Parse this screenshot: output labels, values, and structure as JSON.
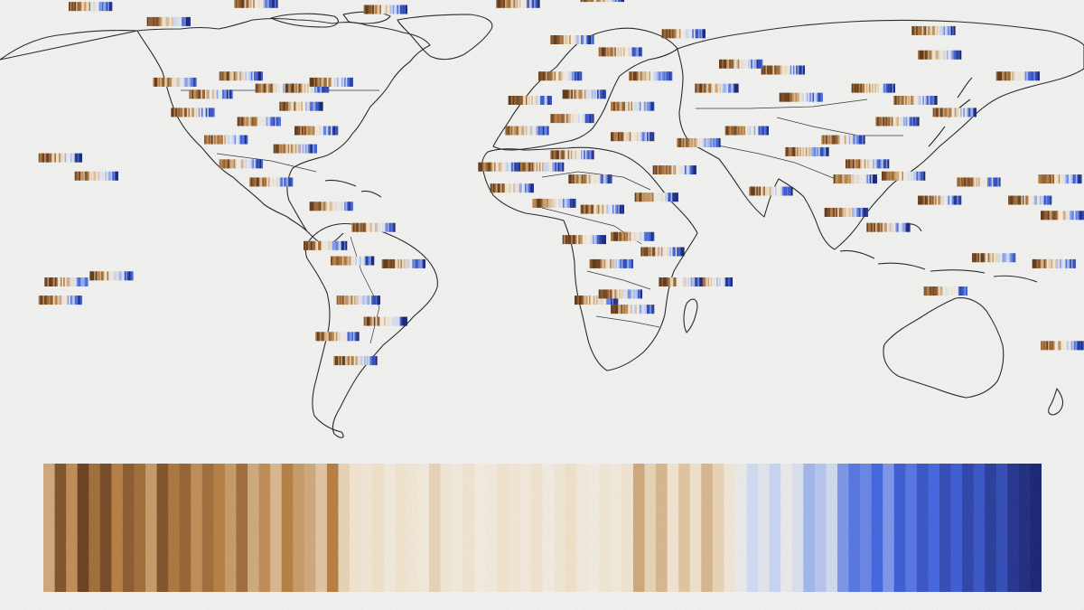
{
  "palette": {
    "warm_dark": "#5a2f10",
    "warm_mid": "#b5793a",
    "warm_light": "#f2e2c8",
    "neutral": "#f5f1ea",
    "cool_light": "#c8d6f4",
    "cool_mid": "#3a5fe0",
    "cool_dark": "#0e1a6e",
    "background": "#f4f4f2",
    "coastline": "#1c1c1c"
  },
  "big_stripe_series": [
    -0.45,
    -0.85,
    -0.55,
    -0.95,
    -0.7,
    -0.9,
    -0.6,
    -0.8,
    -0.7,
    -0.5,
    -0.85,
    -0.65,
    -0.75,
    -0.55,
    -0.7,
    -0.6,
    -0.5,
    -0.7,
    -0.45,
    -0.55,
    -0.4,
    -0.6,
    -0.5,
    -0.45,
    -0.35,
    -0.6,
    -0.3,
    -0.2,
    -0.15,
    -0.25,
    -0.1,
    -0.2,
    -0.15,
    -0.1,
    -0.3,
    -0.15,
    -0.1,
    -0.2,
    -0.05,
    -0.1,
    -0.2,
    -0.15,
    -0.1,
    -0.2,
    -0.05,
    -0.15,
    -0.25,
    -0.1,
    -0.05,
    -0.15,
    -0.1,
    -0.2,
    -0.45,
    -0.3,
    -0.4,
    -0.2,
    -0.35,
    -0.25,
    -0.4,
    -0.3,
    -0.15,
    0.05,
    0.2,
    0.1,
    0.25,
    0.05,
    0.15,
    0.35,
    0.3,
    0.2,
    0.45,
    0.55,
    0.5,
    0.6,
    0.45,
    0.65,
    0.55,
    0.7,
    0.6,
    0.75,
    0.65,
    0.8,
    0.7,
    0.85,
    0.75,
    0.9,
    0.95,
    1.0
  ],
  "station_stripes": [
    {
      "lon": -150,
      "lat": 71
    },
    {
      "lon": -124,
      "lat": 66
    },
    {
      "lon": -95,
      "lat": 72
    },
    {
      "lon": -52,
      "lat": 70
    },
    {
      "lon": -8,
      "lat": 72
    },
    {
      "lon": 20,
      "lat": 74
    },
    {
      "lon": 47,
      "lat": 62
    },
    {
      "lon": 130,
      "lat": 63
    },
    {
      "lon": 132,
      "lat": 55
    },
    {
      "lon": 158,
      "lat": 48
    },
    {
      "lon": -160,
      "lat": 21
    },
    {
      "lon": -148,
      "lat": 15
    },
    {
      "lon": -158,
      "lat": -20
    },
    {
      "lon": -143,
      "lat": -18
    },
    {
      "lon": -160,
      "lat": -26
    },
    {
      "lon": 174,
      "lat": -41
    },
    {
      "lon": 134,
      "lat": -23
    },
    {
      "lon": 150,
      "lat": -12
    },
    {
      "lon": 170,
      "lat": -14
    },
    {
      "lon": 176,
      "lat": 2
    },
    {
      "lon": 172,
      "lat": 14
    },
    {
      "lon": 145,
      "lat": 13
    },
    {
      "lon": 162,
      "lat": 7
    },
    {
      "lon": 132,
      "lat": 7
    },
    {
      "lon": 101,
      "lat": 3
    },
    {
      "lon": 115,
      "lat": -2
    },
    {
      "lon": 100,
      "lat": 27
    },
    {
      "lon": 76,
      "lat": 10
    },
    {
      "lon": 56,
      "lat": -20
    },
    {
      "lon": 46,
      "lat": -20
    },
    {
      "lon": 58,
      "lat": 44
    },
    {
      "lon": 80,
      "lat": 50
    },
    {
      "lon": -62,
      "lat": -46
    },
    {
      "lon": -68,
      "lat": -38
    },
    {
      "lon": -61,
      "lat": -26
    },
    {
      "lon": -63,
      "lat": -13
    },
    {
      "lon": -72,
      "lat": -8
    },
    {
      "lon": -70,
      "lat": 5
    },
    {
      "lon": -90,
      "lat": 13
    },
    {
      "lon": -100,
      "lat": 19
    },
    {
      "lon": -105,
      "lat": 27
    },
    {
      "lon": -82,
      "lat": 24
    },
    {
      "lon": -75,
      "lat": 30
    },
    {
      "lon": 16,
      "lat": 14
    },
    {
      "lon": 4,
      "lat": 6
    },
    {
      "lon": 30,
      "lat": -5
    },
    {
      "lon": 23,
      "lat": -14
    },
    {
      "lon": 30,
      "lat": -29
    },
    {
      "lon": 18,
      "lat": -26
    },
    {
      "lon": 38,
      "lat": 8
    },
    {
      "lon": 44,
      "lat": 17
    },
    {
      "lon": 52,
      "lat": 26
    },
    {
      "lon": 68,
      "lat": 30
    },
    {
      "lon": 88,
      "lat": 23
    },
    {
      "lon": 104,
      "lat": 14
    },
    {
      "lon": 108,
      "lat": 19
    },
    {
      "lon": 120,
      "lat": 15
    },
    {
      "lon": 118,
      "lat": 33
    },
    {
      "lon": 124,
      "lat": 40
    },
    {
      "lon": 137,
      "lat": 36
    },
    {
      "lon": 110,
      "lat": 44
    },
    {
      "lon": 86,
      "lat": 41
    },
    {
      "lon": 66,
      "lat": 52
    },
    {
      "lon": 36,
      "lat": 48
    },
    {
      "lon": 26,
      "lat": 56
    },
    {
      "lon": 10,
      "lat": 60
    },
    {
      "lon": 6,
      "lat": 48
    },
    {
      "lon": -4,
      "lat": 40
    },
    {
      "lon": 14,
      "lat": 42
    },
    {
      "lon": 30,
      "lat": 38
    },
    {
      "lon": -5,
      "lat": 30
    },
    {
      "lon": 10,
      "lat": 34
    },
    {
      "lon": 30,
      "lat": 28
    },
    {
      "lon": -14,
      "lat": 18
    },
    {
      "lon": -10,
      "lat": 11
    },
    {
      "lon": 0,
      "lat": 18
    },
    {
      "lon": 10,
      "lat": 22
    },
    {
      "lon": 20,
      "lat": 4
    },
    {
      "lon": 14,
      "lat": -6
    },
    {
      "lon": 40,
      "lat": -10
    },
    {
      "lon": 26,
      "lat": -24
    },
    {
      "lon": -56,
      "lat": -2
    },
    {
      "lon": -46,
      "lat": -14
    },
    {
      "lon": -52,
      "lat": -33
    },
    {
      "lon": -80,
      "lat": 38
    },
    {
      "lon": -94,
      "lat": 33
    },
    {
      "lon": -116,
      "lat": 36
    },
    {
      "lon": -122,
      "lat": 46
    },
    {
      "lon": -110,
      "lat": 42
    },
    {
      "lon": -100,
      "lat": 48
    },
    {
      "lon": -88,
      "lat": 44
    },
    {
      "lon": -78,
      "lat": 44
    },
    {
      "lon": -70,
      "lat": 46
    }
  ]
}
